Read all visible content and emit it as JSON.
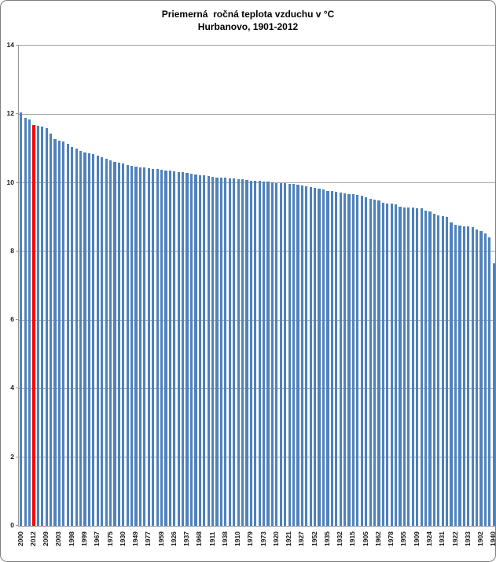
{
  "chart_data": {
    "type": "bar",
    "title": "Priemerná  ročná teplota vzduchu v °C",
    "subtitle": "Hurbanovo, 1901-2012",
    "xlabel": "",
    "ylabel": "",
    "ylim": [
      0,
      14
    ],
    "yticks": [
      0,
      2,
      4,
      6,
      8,
      10,
      12,
      14
    ],
    "grid": "horizontal",
    "legend": "none",
    "sort_order": "descending by temperature",
    "bar_color": "#4F81BD",
    "highlight_color": "#FF0000",
    "highlight_index": 3,
    "highlight_category": "2012",
    "background_color": "#FFFFFF",
    "grid_color": "#A6A6A6",
    "axis_color": "#999999",
    "categories": [
      "2000",
      "",
      "",
      "2012",
      "",
      "",
      "2009",
      "",
      "",
      "2003",
      "",
      "",
      "1998",
      "",
      "",
      "1999",
      "",
      "",
      "1967",
      "",
      "",
      "1975",
      "",
      "",
      "1930",
      "",
      "",
      "1949",
      "",
      "",
      "1977",
      "",
      "",
      "1959",
      "",
      "",
      "1926",
      "",
      "",
      "1937",
      "",
      "",
      "1968",
      "",
      "",
      "1911",
      "",
      "",
      "1938",
      "",
      "",
      "1910",
      "",
      "",
      "1979",
      "",
      "",
      "1973",
      "",
      "",
      "1920",
      "",
      "",
      "1921",
      "",
      "",
      "1927",
      "",
      "",
      "1952",
      "",
      "",
      "1935",
      "",
      "",
      "1932",
      "",
      "",
      "1915",
      "",
      "",
      "1905",
      "",
      "",
      "1962",
      "",
      "",
      "1978",
      "",
      "",
      "1955",
      "",
      "",
      "1909",
      "",
      "",
      "1924",
      "",
      "",
      "1931",
      "",
      "",
      "1922",
      "",
      "",
      "1933",
      "",
      "",
      "1902",
      "",
      "",
      "1940"
    ],
    "values": [
      12.05,
      11.9,
      11.85,
      11.68,
      11.66,
      11.63,
      11.6,
      11.43,
      11.28,
      11.22,
      11.2,
      11.13,
      11.05,
      11.0,
      10.93,
      10.89,
      10.87,
      10.83,
      10.79,
      10.74,
      10.69,
      10.66,
      10.62,
      10.59,
      10.56,
      10.52,
      10.49,
      10.47,
      10.46,
      10.45,
      10.43,
      10.41,
      10.4,
      10.38,
      10.36,
      10.35,
      10.33,
      10.31,
      10.3,
      10.28,
      10.26,
      10.24,
      10.22,
      10.21,
      10.19,
      10.17,
      10.16,
      10.15,
      10.14,
      10.13,
      10.12,
      10.11,
      10.1,
      10.08,
      10.06,
      10.05,
      10.05,
      10.04,
      10.04,
      10.01,
      9.99,
      9.99,
      9.98,
      9.97,
      9.97,
      9.95,
      9.93,
      9.9,
      9.87,
      9.85,
      9.83,
      9.81,
      9.77,
      9.75,
      9.73,
      9.72,
      9.69,
      9.67,
      9.66,
      9.64,
      9.62,
      9.58,
      9.54,
      9.5,
      9.48,
      9.42,
      9.4,
      9.39,
      9.37,
      9.3,
      9.28,
      9.27,
      9.27,
      9.26,
      9.25,
      9.19,
      9.16,
      9.1,
      9.05,
      9.02,
      9.0,
      8.85,
      8.78,
      8.75,
      8.74,
      8.73,
      8.71,
      8.65,
      8.6,
      8.53,
      8.42,
      7.65
    ]
  }
}
